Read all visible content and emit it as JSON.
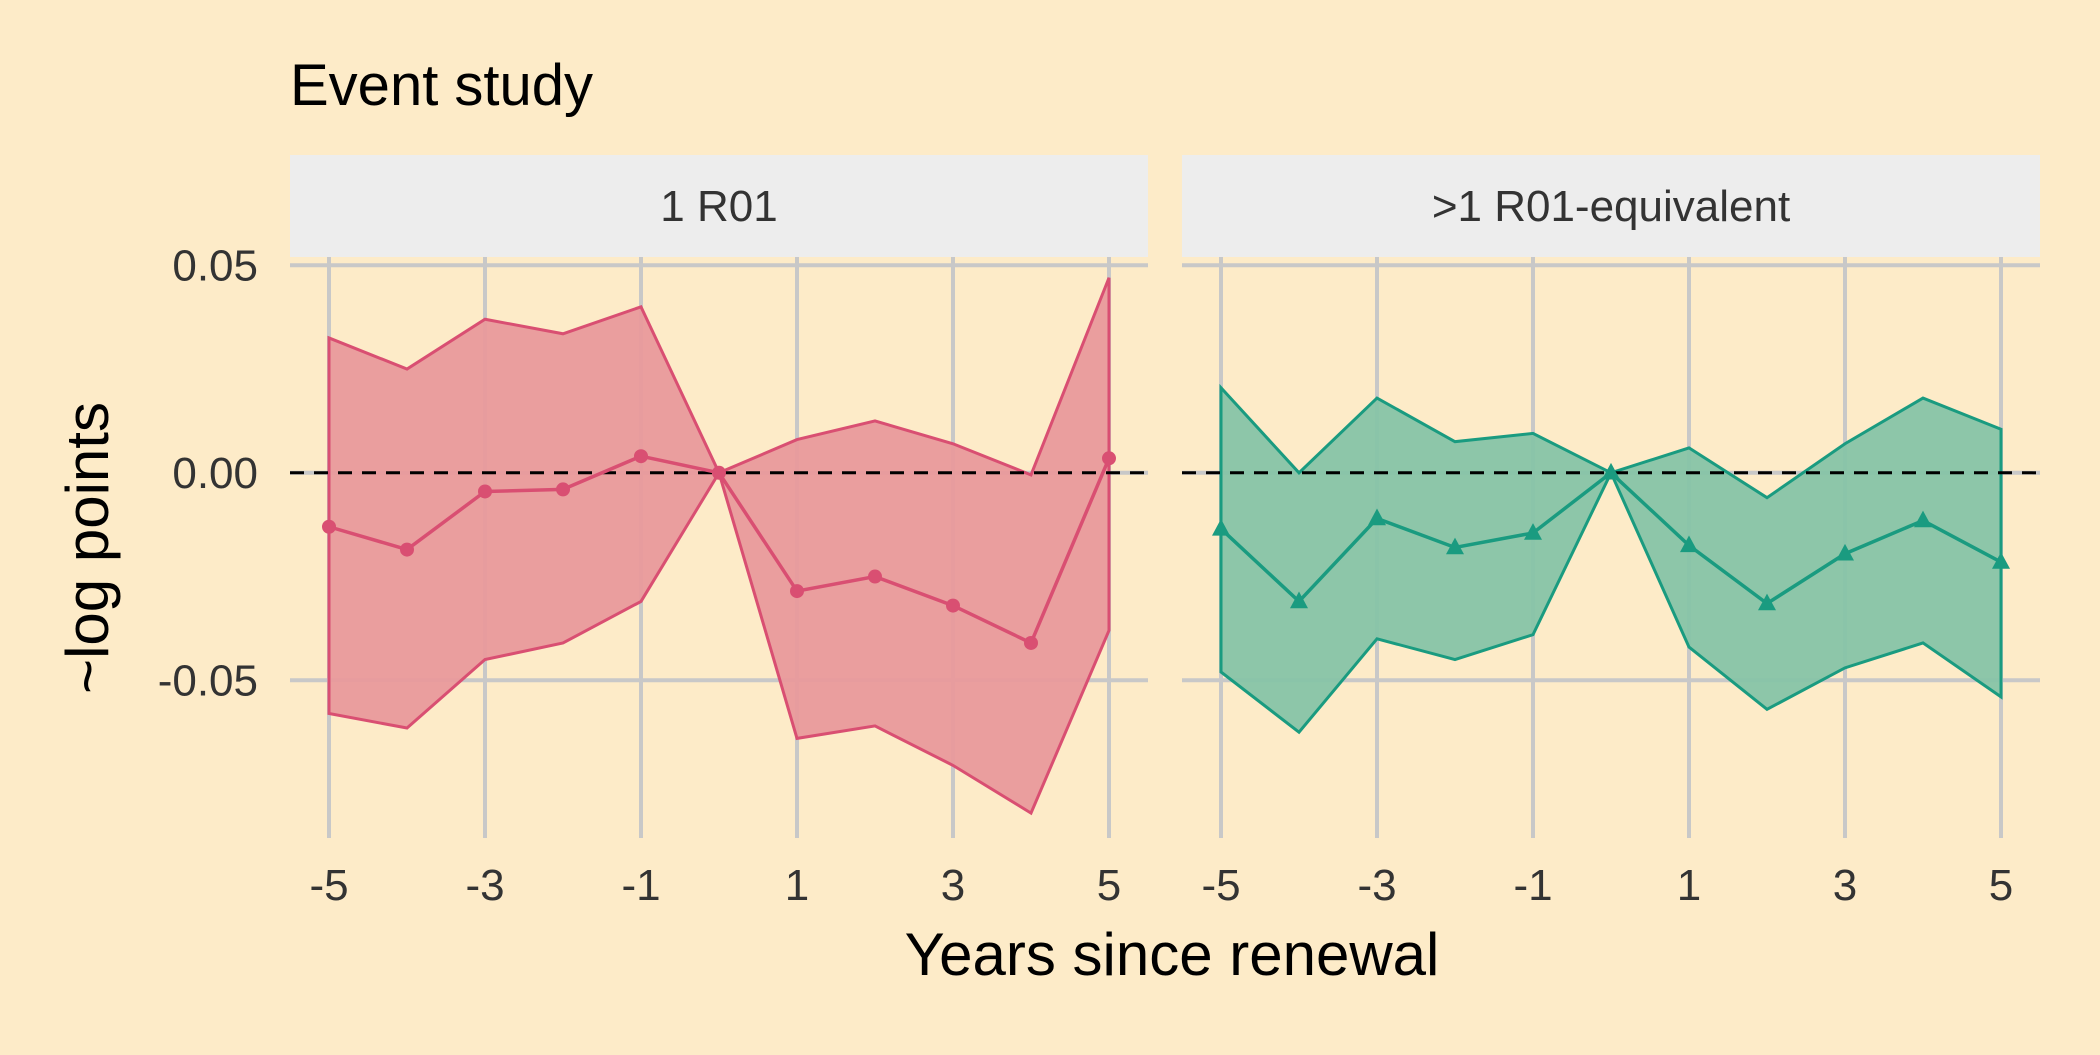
{
  "chart_data": {
    "type": "line",
    "title": "Event study",
    "xlabel": "Years since renewal",
    "ylabel": "~log points",
    "xlim": [
      -5.5,
      5.5
    ],
    "ylim": [
      -0.088,
      0.052
    ],
    "x_ticks": [
      -5,
      -3,
      -1,
      1,
      3,
      5
    ],
    "x_tick_labels": [
      "-5",
      "-3",
      "-1",
      "1",
      "3",
      "5"
    ],
    "y_ticks": [
      -0.05,
      0.0,
      0.05
    ],
    "y_tick_labels": [
      "-0.05",
      "0.00",
      "0.05"
    ],
    "grid": true,
    "reference_line": {
      "y": 0,
      "style": "dashed"
    },
    "background": "#FDEBC8",
    "strip_background": "#EDEDED",
    "grid_color": "#C8C8C8",
    "panels": [
      {
        "label": "1 R01",
        "color": "#D94F72",
        "fill": "#E99A9C",
        "marker": "circle",
        "x": [
          -5,
          -4,
          -3,
          -2,
          -1,
          0,
          1,
          2,
          3,
          4,
          5
        ],
        "estimate": [
          -0.013,
          -0.0185,
          -0.0045,
          -0.004,
          0.004,
          0.0,
          -0.0285,
          -0.025,
          -0.032,
          -0.041,
          0.0035
        ],
        "upper": [
          0.0325,
          0.025,
          0.037,
          0.0335,
          0.04,
          0.0,
          0.008,
          0.0125,
          0.007,
          -0.0005,
          0.047
        ],
        "lower": [
          -0.058,
          -0.0615,
          -0.045,
          -0.041,
          -0.031,
          0.0,
          -0.064,
          -0.061,
          -0.0705,
          -0.082,
          -0.038
        ]
      },
      {
        "label": ">1 R01-equivalent",
        "color": "#1A9B80",
        "fill": "#87C4A8",
        "marker": "triangle",
        "x": [
          -5,
          -4,
          -3,
          -2,
          -1,
          0,
          1,
          2,
          3,
          4,
          5
        ],
        "estimate": [
          -0.0135,
          -0.031,
          -0.011,
          -0.018,
          -0.0145,
          0.0,
          -0.0175,
          -0.0315,
          -0.0195,
          -0.0115,
          -0.0215
        ],
        "upper": [
          0.0205,
          0.0,
          0.018,
          0.0075,
          0.0095,
          0.0,
          0.006,
          -0.006,
          0.007,
          0.018,
          0.0105
        ],
        "lower": [
          -0.048,
          -0.0625,
          -0.04,
          -0.045,
          -0.039,
          0.0,
          -0.042,
          -0.057,
          -0.047,
          -0.041,
          -0.054
        ]
      }
    ]
  }
}
